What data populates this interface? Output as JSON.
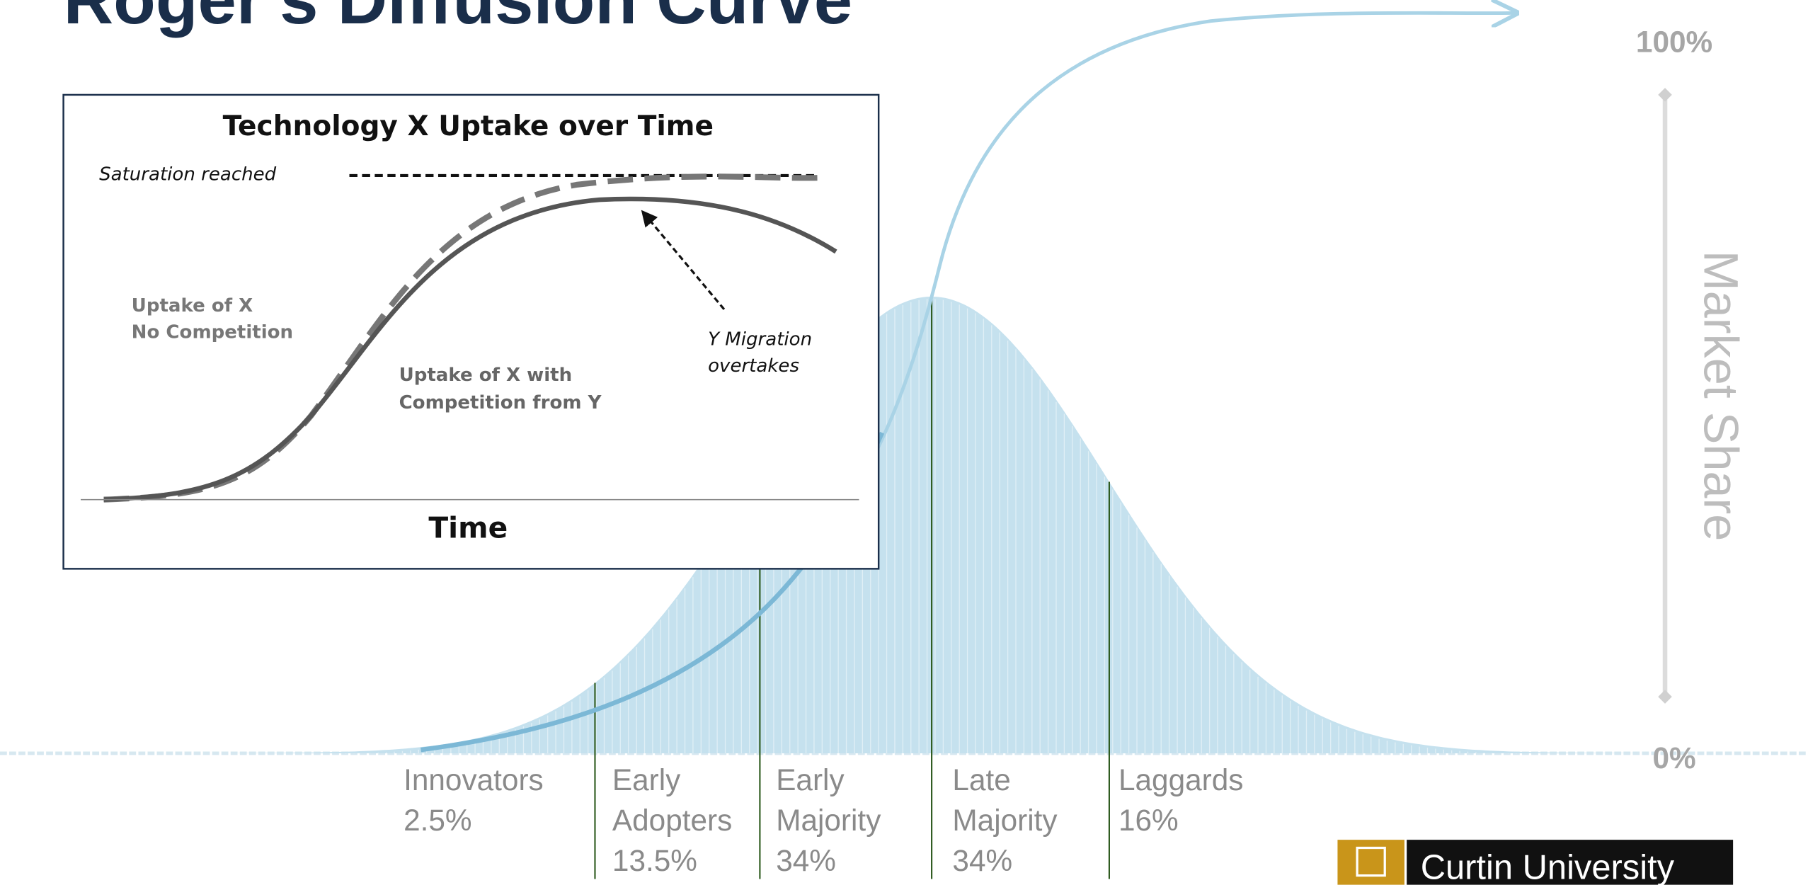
{
  "title": "Roger's Diffusion Curve",
  "inset": {
    "title": "Technology X Uptake over Time",
    "saturation": "Saturation reached",
    "no_competition": [
      "Uptake of X",
      "No Competition"
    ],
    "with_competition": [
      "Uptake of X with",
      "Competition  from Y"
    ],
    "migration": [
      "Y Migration",
      "overtakes"
    ],
    "x_label": "Time"
  },
  "segments": [
    {
      "name": [
        "Innovators"
      ],
      "share": "2.5%"
    },
    {
      "name": [
        "Early",
        "Adopters"
      ],
      "share": "13.5%"
    },
    {
      "name": [
        "Early",
        "Majority"
      ],
      "share": "34%"
    },
    {
      "name": [
        "Late",
        "Majority"
      ],
      "share": "34%"
    },
    {
      "name": [
        "Laggards"
      ],
      "share": "16%"
    }
  ],
  "axis": {
    "top": "100%",
    "bottom": "0%",
    "label": "Market Share"
  },
  "logo": "Curtin University"
}
